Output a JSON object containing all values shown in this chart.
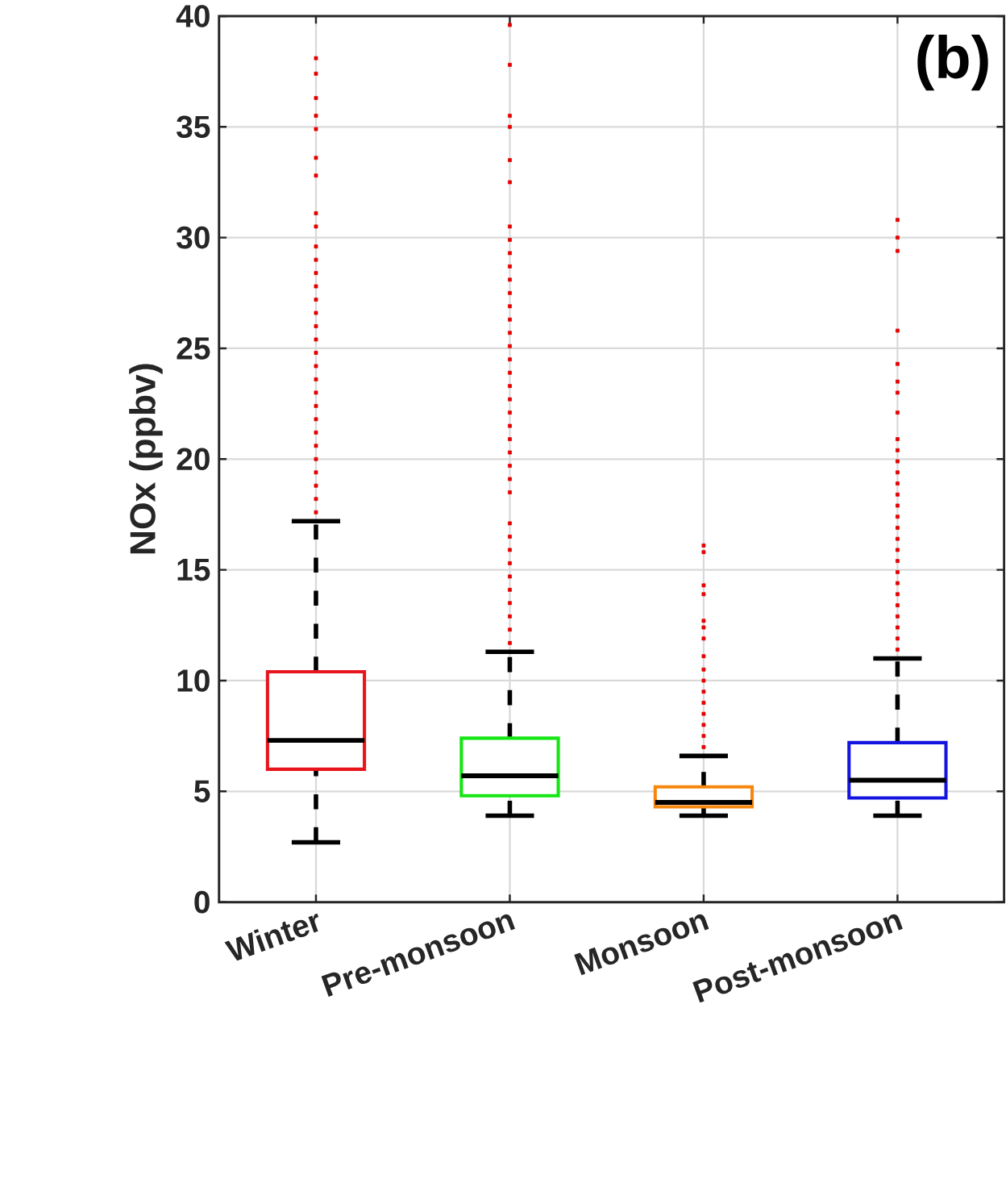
{
  "chart_data": {
    "type": "box",
    "categories": [
      "Winter",
      "Pre-monsoon",
      "Monsoon",
      "Post-monsoon"
    ],
    "ylabel": "NOx (ppbv)",
    "annotations": [
      "(b)"
    ],
    "ylim": [
      0,
      40
    ],
    "yticks": [
      0,
      5,
      10,
      15,
      20,
      25,
      30,
      35,
      40
    ],
    "grid": true,
    "colors": [
      "#e8141c",
      "#14e614",
      "#f5870f",
      "#1414e0"
    ],
    "boxes": [
      {
        "low": 2.7,
        "q1": 6.0,
        "median": 7.3,
        "q3": 10.4,
        "high": 17.2,
        "outliers": [
          17.6,
          18.2,
          18.8,
          19.4,
          20.0,
          20.6,
          21.2,
          21.8,
          22.4,
          23.0,
          23.6,
          24.2,
          24.8,
          25.4,
          26.0,
          26.6,
          27.2,
          27.8,
          28.4,
          29.0,
          29.6,
          30.5,
          31.1,
          32.8,
          33.6,
          34.9,
          35.5,
          36.3,
          37.4,
          38.1
        ]
      },
      {
        "low": 3.9,
        "q1": 4.8,
        "median": 5.7,
        "q3": 7.4,
        "high": 11.3,
        "outliers": [
          11.7,
          12.3,
          12.9,
          13.5,
          14.1,
          14.7,
          15.3,
          15.9,
          16.5,
          17.1,
          18.5,
          19.1,
          19.7,
          20.3,
          20.9,
          21.5,
          22.1,
          22.7,
          23.3,
          23.9,
          24.5,
          25.1,
          25.7,
          26.3,
          26.9,
          27.5,
          28.1,
          28.7,
          29.3,
          29.9,
          30.5,
          32.5,
          33.5,
          35.0,
          35.5,
          37.8,
          39.6
        ]
      },
      {
        "low": 3.9,
        "q1": 4.3,
        "median": 4.5,
        "q3": 5.2,
        "high": 6.6,
        "outliers": [
          7.0,
          7.5,
          8.0,
          8.5,
          9.0,
          9.5,
          10.0,
          10.5,
          11.1,
          11.9,
          12.4,
          12.7,
          13.9,
          14.3,
          15.8,
          16.1
        ]
      },
      {
        "low": 3.9,
        "q1": 4.7,
        "median": 5.5,
        "q3": 7.2,
        "high": 11.0,
        "outliers": [
          11.4,
          11.9,
          12.4,
          12.9,
          13.4,
          13.9,
          14.4,
          14.9,
          15.4,
          15.9,
          16.4,
          16.9,
          17.4,
          17.9,
          18.4,
          18.9,
          19.4,
          19.9,
          20.4,
          20.9,
          22.1,
          23.0,
          23.5,
          24.3,
          25.8,
          29.4,
          30.0,
          30.8
        ]
      }
    ]
  }
}
